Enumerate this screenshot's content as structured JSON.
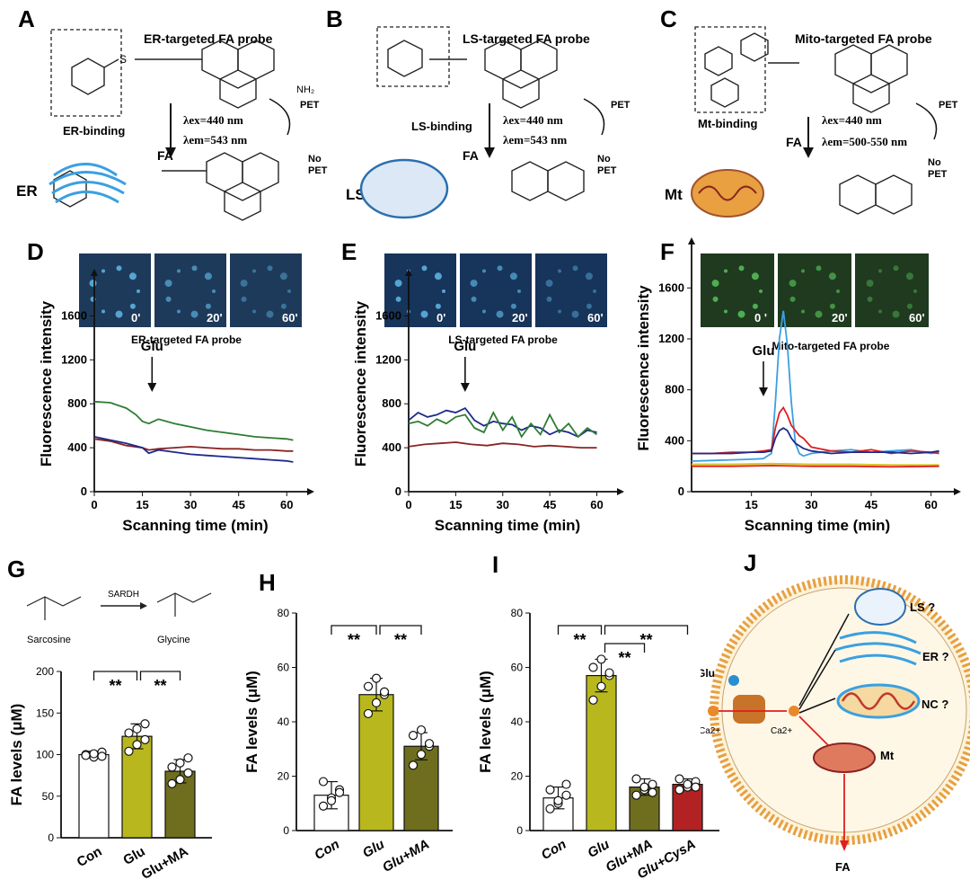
{
  "panels": {
    "A": {
      "letter": "A",
      "title": "ER-targeted FA probe",
      "binding": "ER-binding",
      "organelle": "ER",
      "reactant": "FA",
      "lex": "λex=440 nm",
      "lem": "λem=543 nm",
      "pet": "PET",
      "nopet": [
        "No",
        "PET"
      ]
    },
    "B": {
      "letter": "B",
      "title": "LS-targeted FA probe",
      "binding": "LS-binding",
      "organelle": "LS",
      "reactant": "FA",
      "lex": "λex=440 nm",
      "lem": "λem=543 nm",
      "pet": "PET",
      "nopet": [
        "No",
        "PET"
      ]
    },
    "C": {
      "letter": "C",
      "title": "Mito-targeted FA probe",
      "binding": "Mt-binding",
      "organelle": "Mt",
      "reactant": "FA",
      "lex": "λex=440 nm",
      "lem": "λem=500-550 nm",
      "pet": "PET",
      "nopet": [
        "No",
        "PET"
      ]
    },
    "G": {
      "letter": "G",
      "enzyme": "SARDH",
      "substrate": "Sarcosine",
      "product": "Glycine"
    },
    "J": {
      "letter": "J",
      "glu": "Glu",
      "ca_out": "Ca2+",
      "ca_in": "Ca2+",
      "ls": "LS ?",
      "er": "ER ?",
      "nc": "NC ?",
      "mt": "Mt",
      "fa": "FA"
    }
  },
  "colors": {
    "green": "#2e7d32",
    "red": "#8b2323",
    "blue": "#1c2a8c",
    "cyan": "#3aa0e0",
    "bright_red": "#e01e1e",
    "yellow": "#d4c21e",
    "bar_glu": "#b8b81e",
    "bar_ma": "#6e6e1e",
    "bar_cysa": "#b22222"
  },
  "chart_data": [
    {
      "panel": "D",
      "type": "line",
      "title": "ER-targeted FA probe",
      "annotation": "Glu",
      "annotation_x": 18,
      "xlabel": "Scanning time (min)",
      "ylabel": "Fluorescence intensity",
      "xlim": [
        0,
        63
      ],
      "ylim": [
        0,
        1800
      ],
      "xticks": [
        0,
        15,
        30,
        45,
        60
      ],
      "yticks": [
        0,
        400,
        800,
        1200,
        1600
      ],
      "image_labels": [
        "0'",
        "20'",
        "60'"
      ],
      "series": [
        {
          "color": "green",
          "x": [
            0,
            5,
            10,
            13,
            15,
            17,
            20,
            25,
            30,
            35,
            40,
            45,
            50,
            55,
            60,
            62
          ],
          "y": [
            820,
            810,
            760,
            700,
            640,
            620,
            660,
            620,
            590,
            560,
            540,
            520,
            500,
            490,
            480,
            470
          ]
        },
        {
          "color": "red",
          "x": [
            0,
            5,
            10,
            15,
            17,
            20,
            25,
            30,
            35,
            40,
            45,
            50,
            55,
            60,
            62
          ],
          "y": [
            480,
            460,
            420,
            400,
            380,
            390,
            400,
            410,
            400,
            390,
            390,
            380,
            380,
            370,
            370
          ]
        },
        {
          "color": "blue",
          "x": [
            0,
            5,
            10,
            15,
            17,
            20,
            25,
            30,
            35,
            40,
            45,
            50,
            55,
            60,
            62
          ],
          "y": [
            500,
            470,
            440,
            400,
            350,
            380,
            360,
            340,
            330,
            320,
            310,
            300,
            290,
            280,
            270
          ]
        }
      ]
    },
    {
      "panel": "E",
      "type": "line",
      "title": "LS-targeted FA probe",
      "annotation": "Glu",
      "annotation_x": 18,
      "xlabel": "Scanning time (min)",
      "ylabel": "Fluorescence intensity",
      "xlim": [
        0,
        63
      ],
      "ylim": [
        0,
        1800
      ],
      "xticks": [
        0,
        15,
        30,
        45,
        60
      ],
      "yticks": [
        0,
        400,
        800,
        1200,
        1600
      ],
      "image_labels": [
        "0'",
        "20'",
        "60'"
      ],
      "series": [
        {
          "color": "blue",
          "x": [
            0,
            3,
            6,
            9,
            12,
            15,
            18,
            21,
            24,
            27,
            30,
            33,
            36,
            39,
            42,
            45,
            48,
            51,
            54,
            57,
            60
          ],
          "y": [
            650,
            720,
            680,
            700,
            740,
            720,
            760,
            650,
            600,
            640,
            620,
            610,
            560,
            600,
            580,
            520,
            560,
            540,
            500,
            560,
            540
          ]
        },
        {
          "color": "green",
          "x": [
            0,
            3,
            6,
            9,
            12,
            15,
            18,
            21,
            24,
            27,
            30,
            33,
            36,
            39,
            42,
            45,
            48,
            51,
            54,
            57,
            60
          ],
          "y": [
            620,
            640,
            600,
            660,
            620,
            680,
            700,
            580,
            540,
            720,
            560,
            680,
            500,
            620,
            520,
            700,
            540,
            620,
            500,
            580,
            520
          ]
        },
        {
          "color": "red",
          "x": [
            0,
            5,
            10,
            15,
            20,
            25,
            30,
            35,
            40,
            45,
            50,
            55,
            60
          ],
          "y": [
            410,
            430,
            440,
            450,
            430,
            420,
            440,
            430,
            410,
            420,
            410,
            400,
            400
          ]
        }
      ]
    },
    {
      "panel": "F",
      "type": "line",
      "title": "Mito-targeted FA probe",
      "annotation": "Glu",
      "annotation_x": 18,
      "xlabel": "Scanning time (min)",
      "ylabel": "Fluorescence intensity",
      "xlim": [
        0,
        63
      ],
      "ylim": [
        0,
        1800
      ],
      "xticks": [
        15,
        30,
        45,
        60
      ],
      "yticks": [
        0,
        400,
        800,
        1200,
        1600
      ],
      "image_labels": [
        "0 '",
        "20'",
        "60'"
      ],
      "series": [
        {
          "color": "cyan",
          "x": [
            0,
            5,
            10,
            15,
            18,
            20,
            21,
            22,
            23,
            24,
            25,
            26,
            27,
            28,
            30,
            35,
            40,
            45,
            50,
            55,
            60,
            62
          ],
          "y": [
            240,
            245,
            250,
            255,
            260,
            300,
            700,
            1200,
            1420,
            1150,
            700,
            380,
            300,
            280,
            300,
            320,
            330,
            310,
            320,
            330,
            300,
            310
          ]
        },
        {
          "color": "bright_red",
          "x": [
            0,
            5,
            10,
            15,
            18,
            20,
            21,
            22,
            23,
            24,
            25,
            26,
            27,
            28,
            30,
            35,
            40,
            45,
            50,
            55,
            60,
            62
          ],
          "y": [
            300,
            300,
            310,
            310,
            320,
            330,
            500,
            620,
            660,
            600,
            520,
            480,
            440,
            420,
            350,
            320,
            310,
            330,
            300,
            320,
            310,
            300
          ]
        },
        {
          "color": "blue",
          "x": [
            0,
            5,
            10,
            15,
            18,
            20,
            21,
            22,
            23,
            24,
            25,
            26,
            27,
            28,
            30,
            35,
            40,
            45,
            50,
            55,
            60,
            62
          ],
          "y": [
            300,
            300,
            300,
            310,
            310,
            320,
            420,
            480,
            500,
            480,
            420,
            380,
            360,
            340,
            320,
            300,
            310,
            310,
            310,
            300,
            310,
            320
          ]
        },
        {
          "color": "yellow",
          "x": [
            0,
            10,
            20,
            30,
            40,
            50,
            62
          ],
          "y": [
            215,
            215,
            220,
            215,
            215,
            210,
            210
          ]
        },
        {
          "color": "bright_red",
          "x": [
            0,
            10,
            20,
            30,
            40,
            50,
            62
          ],
          "y": [
            200,
            200,
            205,
            200,
            200,
            195,
            200
          ]
        }
      ]
    },
    {
      "panel": "G",
      "type": "bar",
      "categories": [
        "Con",
        "Glu",
        "Glu+MA"
      ],
      "values": [
        100,
        122,
        80
      ],
      "errors": [
        4,
        15,
        14
      ],
      "ylabel": "FA levels (μM)",
      "ylim": [
        0,
        200
      ],
      "yticks": [
        0,
        50,
        100,
        150,
        200
      ],
      "points": [
        [
          100,
          97,
          103,
          99,
          101,
          98
        ],
        [
          104,
          112,
          118,
          126,
          131,
          137
        ],
        [
          65,
          70,
          78,
          85,
          90,
          96
        ]
      ],
      "significance": [
        {
          "from": 0,
          "to": 1,
          "label": "**"
        },
        {
          "from": 1,
          "to": 2,
          "label": "**"
        }
      ]
    },
    {
      "panel": "H",
      "type": "bar",
      "categories": [
        "Con",
        "Glu",
        "Glu+MA"
      ],
      "values": [
        13,
        50,
        31
      ],
      "errors": [
        5,
        6,
        5
      ],
      "ylabel": "FA levels (μM)",
      "ylim": [
        0,
        80
      ],
      "yticks": [
        0,
        20,
        40,
        60,
        80
      ],
      "points": [
        [
          9,
          12,
          15,
          18,
          11,
          14
        ],
        [
          43,
          47,
          50,
          53,
          56,
          51
        ],
        [
          24,
          28,
          31,
          35,
          37,
          32
        ]
      ],
      "significance": [
        {
          "from": 0,
          "to": 1,
          "label": "**"
        },
        {
          "from": 1,
          "to": 2,
          "label": "**"
        }
      ]
    },
    {
      "panel": "I",
      "type": "bar",
      "categories": [
        "Con",
        "Glu",
        "Glu+MA",
        "Glu+CysA"
      ],
      "values": [
        12,
        57,
        16,
        17
      ],
      "errors": [
        4,
        6,
        3,
        2
      ],
      "ylabel": "FA levels (μM)",
      "ylim": [
        0,
        80
      ],
      "yticks": [
        0,
        20,
        40,
        60,
        80
      ],
      "points": [
        [
          8,
          10,
          13,
          15,
          11,
          17
        ],
        [
          48,
          53,
          57,
          60,
          63,
          58
        ],
        [
          13,
          15,
          17,
          19,
          16,
          14
        ],
        [
          15,
          16,
          18,
          19,
          17,
          16
        ]
      ],
      "significance": [
        {
          "from": 0,
          "to": 1,
          "label": "**"
        },
        {
          "from": 1,
          "to": 2,
          "label": "**"
        },
        {
          "from": 1,
          "to": 3,
          "label": "**"
        }
      ]
    }
  ]
}
